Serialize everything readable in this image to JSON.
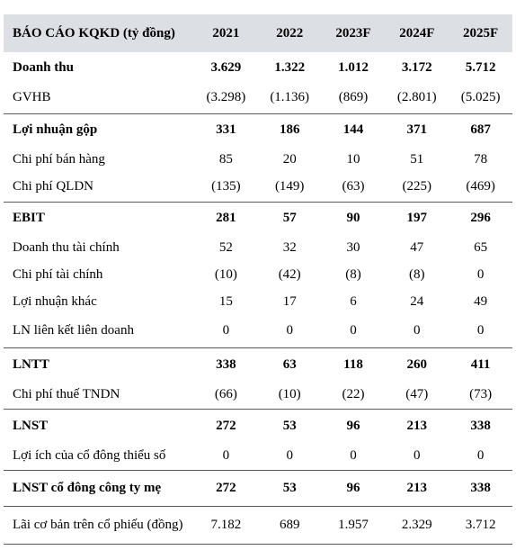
{
  "table": {
    "header": {
      "label": "BÁO CÁO KQKD (tỷ đồng)",
      "years": [
        "2021",
        "2022",
        "2023F",
        "2024F",
        "2025F"
      ]
    },
    "rows": [
      {
        "label": "Doanh thu",
        "values": [
          "3.629",
          "1.322",
          "1.012",
          "3.172",
          "5.712"
        ]
      },
      {
        "label": "GVHB",
        "values": [
          "(3.298)",
          "(1.136)",
          "(869)",
          "(2.801)",
          "(5.025)"
        ]
      },
      {
        "label": "Lợi nhuận gộp",
        "values": [
          "331",
          "186",
          "144",
          "371",
          "687"
        ]
      },
      {
        "label": "Chi phí bán hàng",
        "values": [
          "85",
          "20",
          "10",
          "51",
          "78"
        ]
      },
      {
        "label": "Chi phí QLDN",
        "values": [
          "(135)",
          "(149)",
          "(63)",
          "(225)",
          "(469)"
        ]
      },
      {
        "label": "EBIT",
        "values": [
          "281",
          "57",
          "90",
          "197",
          "296"
        ]
      },
      {
        "label": "Doanh thu tài chính",
        "values": [
          "52",
          "32",
          "30",
          "47",
          "65"
        ]
      },
      {
        "label": "Chi phí tài chính",
        "values": [
          "(10)",
          "(42)",
          "(8)",
          "(8)",
          "0"
        ]
      },
      {
        "label": "Lợi nhuận khác",
        "values": [
          "15",
          "17",
          "6",
          "24",
          "49"
        ]
      },
      {
        "label": "LN liên kết liên doanh",
        "values": [
          "0",
          "0",
          "0",
          "0",
          "0"
        ]
      },
      {
        "label": "LNTT",
        "values": [
          "338",
          "63",
          "118",
          "260",
          "411"
        ]
      },
      {
        "label": "Chi phí thuế TNDN",
        "values": [
          "(66)",
          "(10)",
          "(22)",
          "(47)",
          "(73)"
        ]
      },
      {
        "label": "LNST",
        "values": [
          "272",
          "53",
          "96",
          "213",
          "338"
        ]
      },
      {
        "label": "Lợi ích của cổ đông thiểu số",
        "values": [
          "0",
          "0",
          "0",
          "0",
          "0"
        ]
      },
      {
        "label": "LNST cổ đông công ty mẹ",
        "values": [
          "272",
          "53",
          "96",
          "213",
          "338"
        ]
      },
      {
        "label": "Lãi cơ bản trên cổ phiếu (đồng)",
        "values": [
          "7.182",
          "689",
          "1.957",
          "2.329",
          "3.712"
        ]
      }
    ]
  }
}
